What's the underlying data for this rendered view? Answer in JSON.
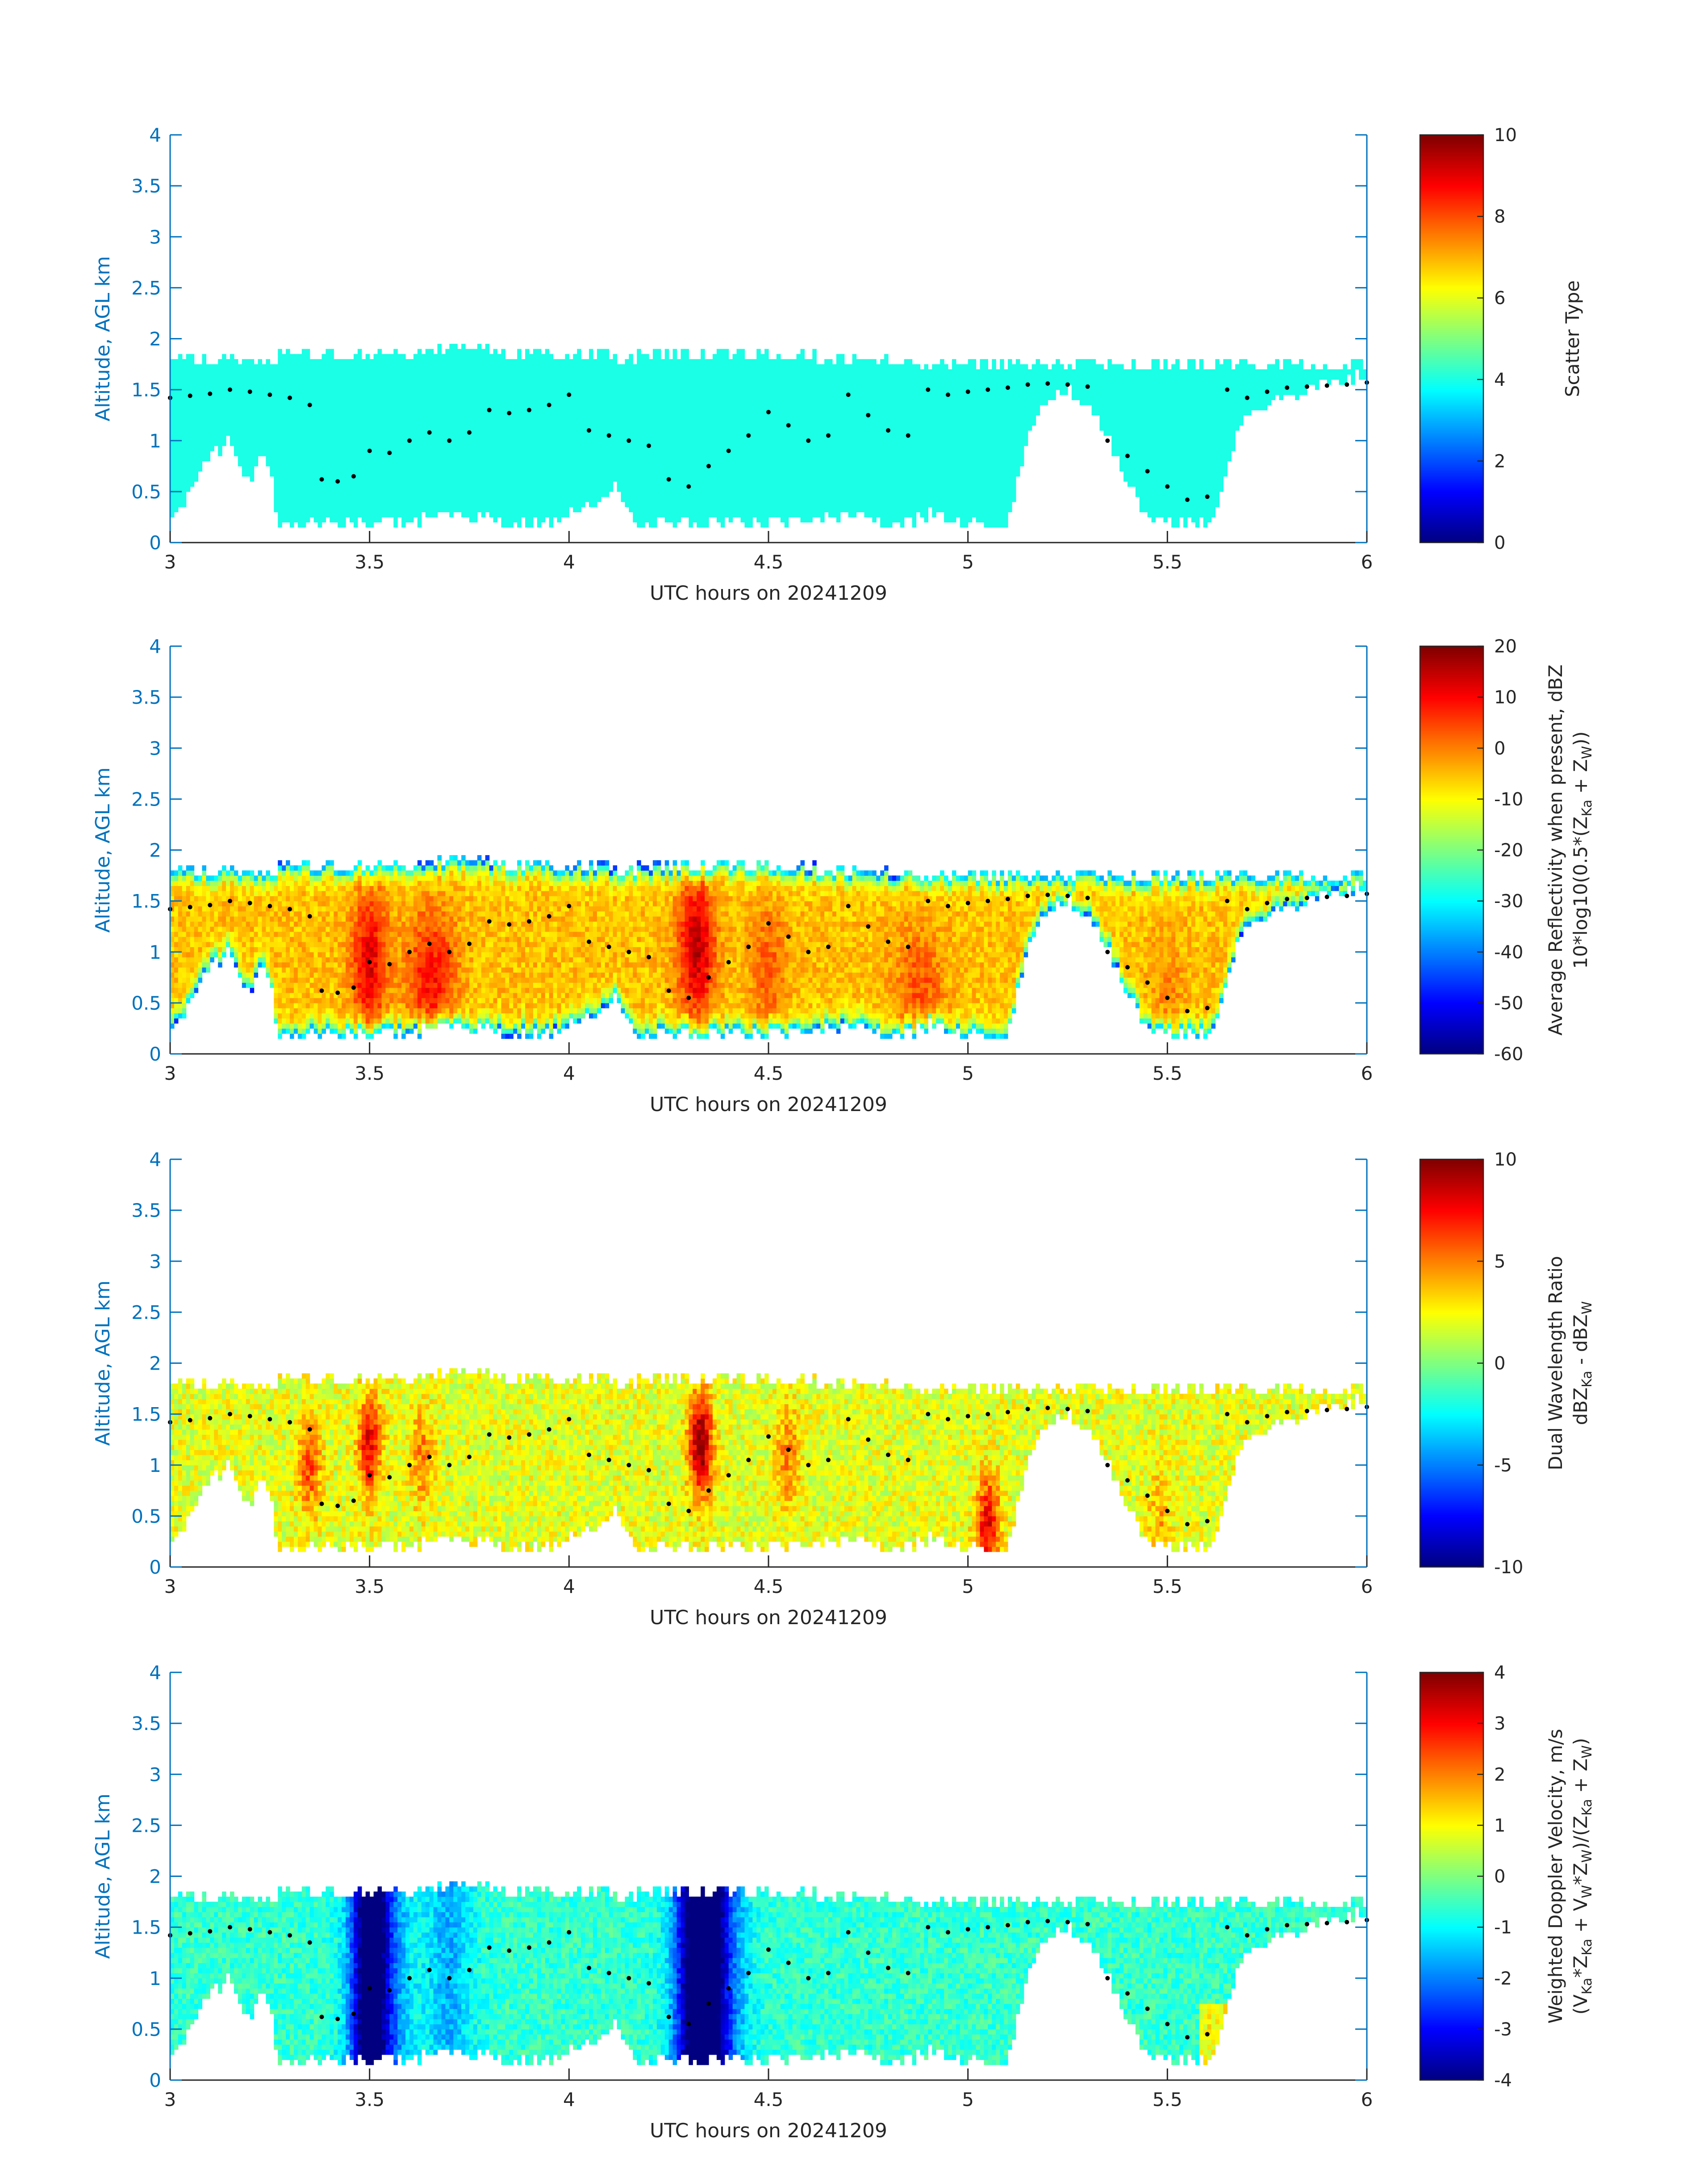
{
  "figure": {
    "background": "#ffffff",
    "axis_color": "#0072bd",
    "text_color": "#262626",
    "echo_top_marker_color": "#000000"
  },
  "chart_data": [
    {
      "type": "heatmap",
      "title": "",
      "xlabel": "UTC hours on 20241209",
      "ylabel": "Altitude, AGL km",
      "xlim": [
        3,
        6
      ],
      "ylim": [
        0,
        4
      ],
      "xticks": [
        "3",
        "3.5",
        "4",
        "4.5",
        "5",
        "5.5",
        "6"
      ],
      "yticks": [
        "0",
        "0.5",
        "1",
        "1.5",
        "2",
        "2.5",
        "3",
        "3.5",
        "4"
      ],
      "colorbar": {
        "label_lines": [
          "Scatter Type"
        ],
        "clim": [
          0,
          10
        ],
        "ticks": [
          "0",
          "2",
          "4",
          "6",
          "8",
          "10"
        ],
        "colormap": "jet"
      },
      "dominant_value": 4,
      "echo_top_markers": true,
      "grid": false,
      "legend": "none"
    },
    {
      "type": "heatmap",
      "title": "",
      "xlabel": "UTC hours on 20241209",
      "ylabel": "Altitude, AGL km",
      "xlim": [
        3,
        6
      ],
      "ylim": [
        0,
        4
      ],
      "xticks": [
        "3",
        "3.5",
        "4",
        "4.5",
        "5",
        "5.5",
        "6"
      ],
      "yticks": [
        "0",
        "0.5",
        "1",
        "1.5",
        "2",
        "2.5",
        "3",
        "3.5",
        "4"
      ],
      "colorbar": {
        "label_lines": [
          "Average Reflectivity when present, dBZ",
          "10*log10(0.5*(Z_Ka + Z_W))"
        ],
        "clim": [
          -60,
          20
        ],
        "ticks": [
          "-60",
          "-50",
          "-40",
          "-30",
          "-20",
          "-10",
          "0",
          "10",
          "20"
        ],
        "colormap": "jet"
      },
      "echo_top_markers": true,
      "grid": false,
      "legend": "none"
    },
    {
      "type": "heatmap",
      "title": "",
      "xlabel": "UTC hours on 20241209",
      "ylabel": "Altitude, AGL km",
      "xlim": [
        3,
        6
      ],
      "ylim": [
        0,
        4
      ],
      "xticks": [
        "3",
        "3.5",
        "4",
        "4.5",
        "5",
        "5.5",
        "6"
      ],
      "yticks": [
        "0",
        "0.5",
        "1",
        "1.5",
        "2",
        "2.5",
        "3",
        "3.5",
        "4"
      ],
      "colorbar": {
        "label_lines": [
          "Dual Wavelength Ratio",
          "dBZ_Ka - dBZ_W"
        ],
        "clim": [
          -10,
          10
        ],
        "ticks": [
          "-10",
          "-5",
          "0",
          "5",
          "10"
        ],
        "colormap": "jet"
      },
      "echo_top_markers": true,
      "grid": false,
      "legend": "none"
    },
    {
      "type": "heatmap",
      "title": "",
      "xlabel": "UTC hours on 20241209",
      "ylabel": "Altitude, AGL km",
      "xlim": [
        3,
        6
      ],
      "ylim": [
        0,
        4
      ],
      "xticks": [
        "3",
        "3.5",
        "4",
        "4.5",
        "5",
        "5.5",
        "6"
      ],
      "yticks": [
        "0",
        "0.5",
        "1",
        "1.5",
        "2",
        "2.5",
        "3",
        "3.5",
        "4"
      ],
      "colorbar": {
        "label_lines": [
          "Weighted Doppler Velocity, m/s",
          "(V_Ka*Z_Ka + V_W*Z_W)/(Z_Ka + Z_W)"
        ],
        "clim": [
          -4,
          4
        ],
        "ticks": [
          "-4",
          "-3",
          "-2",
          "-1",
          "0",
          "1",
          "2",
          "3",
          "4"
        ],
        "colormap": "jet"
      },
      "echo_top_markers": true,
      "grid": false,
      "legend": "none"
    }
  ],
  "cloud": {
    "top_km": [
      [
        3.0,
        1.8
      ],
      [
        3.25,
        1.8
      ],
      [
        3.3,
        1.85
      ],
      [
        3.55,
        1.85
      ],
      [
        3.7,
        1.9
      ],
      [
        3.88,
        1.86
      ],
      [
        4.15,
        1.82
      ],
      [
        4.3,
        1.85
      ],
      [
        4.5,
        1.86
      ],
      [
        4.7,
        1.8
      ],
      [
        4.9,
        1.76
      ],
      [
        5.2,
        1.75
      ],
      [
        6.0,
        1.75
      ]
    ],
    "base_km": [
      [
        3.0,
        0.3
      ],
      [
        3.03,
        0.35
      ],
      [
        3.05,
        0.55
      ],
      [
        3.08,
        0.8
      ],
      [
        3.12,
        0.9
      ],
      [
        3.15,
        1.0
      ],
      [
        3.18,
        0.75
      ],
      [
        3.2,
        0.6
      ],
      [
        3.22,
        0.9
      ],
      [
        3.25,
        0.7
      ],
      [
        3.27,
        0.2
      ],
      [
        3.55,
        0.2
      ],
      [
        3.7,
        0.25
      ],
      [
        3.95,
        0.2
      ],
      [
        4.05,
        0.35
      ],
      [
        4.12,
        0.6
      ],
      [
        4.16,
        0.2
      ],
      [
        4.6,
        0.2
      ],
      [
        4.65,
        0.25
      ],
      [
        4.72,
        0.3
      ],
      [
        4.75,
        0.2
      ],
      [
        4.85,
        0.2
      ],
      [
        4.92,
        0.3
      ],
      [
        4.98,
        0.2
      ],
      [
        5.1,
        0.2
      ],
      [
        5.15,
        1.0
      ],
      [
        5.18,
        1.3
      ],
      [
        5.25,
        1.5
      ],
      [
        5.3,
        1.35
      ],
      [
        5.35,
        1.05
      ],
      [
        5.4,
        0.6
      ],
      [
        5.44,
        0.3
      ],
      [
        5.46,
        0.2
      ],
      [
        5.6,
        0.2
      ],
      [
        5.64,
        0.5
      ],
      [
        5.67,
        1.0
      ],
      [
        5.7,
        1.25
      ],
      [
        5.78,
        1.4
      ],
      [
        5.9,
        1.55
      ],
      [
        6.0,
        1.65
      ]
    ],
    "echo_top_markers_km": [
      [
        3.0,
        1.42
      ],
      [
        3.05,
        1.44
      ],
      [
        3.1,
        1.46
      ],
      [
        3.15,
        1.5
      ],
      [
        3.2,
        1.48
      ],
      [
        3.25,
        1.45
      ],
      [
        3.3,
        1.42
      ],
      [
        3.35,
        1.35
      ],
      [
        3.38,
        0.62
      ],
      [
        3.42,
        0.6
      ],
      [
        3.46,
        0.65
      ],
      [
        3.5,
        0.9
      ],
      [
        3.55,
        0.88
      ],
      [
        3.6,
        1.0
      ],
      [
        3.65,
        1.08
      ],
      [
        3.7,
        1.0
      ],
      [
        3.75,
        1.08
      ],
      [
        3.8,
        1.3
      ],
      [
        3.85,
        1.27
      ],
      [
        3.9,
        1.3
      ],
      [
        3.95,
        1.35
      ],
      [
        4.0,
        1.45
      ],
      [
        4.05,
        1.1
      ],
      [
        4.1,
        1.05
      ],
      [
        4.15,
        1.0
      ],
      [
        4.2,
        0.95
      ],
      [
        4.25,
        0.62
      ],
      [
        4.3,
        0.55
      ],
      [
        4.35,
        0.75
      ],
      [
        4.4,
        0.9
      ],
      [
        4.45,
        1.05
      ],
      [
        4.5,
        1.28
      ],
      [
        4.55,
        1.15
      ],
      [
        4.6,
        1.0
      ],
      [
        4.65,
        1.05
      ],
      [
        4.7,
        1.45
      ],
      [
        4.75,
        1.25
      ],
      [
        4.8,
        1.1
      ],
      [
        4.85,
        1.05
      ],
      [
        4.9,
        1.5
      ],
      [
        4.95,
        1.45
      ],
      [
        5.0,
        1.48
      ],
      [
        5.05,
        1.5
      ],
      [
        5.1,
        1.52
      ],
      [
        5.15,
        1.55
      ],
      [
        5.2,
        1.56
      ],
      [
        5.25,
        1.55
      ],
      [
        5.3,
        1.53
      ],
      [
        5.35,
        1.0
      ],
      [
        5.4,
        0.85
      ],
      [
        5.45,
        0.7
      ],
      [
        5.5,
        0.55
      ],
      [
        5.55,
        0.42
      ],
      [
        5.6,
        0.45
      ],
      [
        5.65,
        1.5
      ],
      [
        5.7,
        1.42
      ],
      [
        5.75,
        1.48
      ],
      [
        5.8,
        1.52
      ],
      [
        5.85,
        1.53
      ],
      [
        5.9,
        1.54
      ],
      [
        5.95,
        1.55
      ],
      [
        6.0,
        1.57
      ]
    ],
    "reflectivity_features": [
      [
        3.5,
        0.9,
        12
      ],
      [
        3.63,
        0.75,
        4
      ],
      [
        3.68,
        0.7,
        5
      ],
      [
        4.32,
        1.05,
        15
      ],
      [
        4.5,
        0.8,
        3
      ],
      [
        4.85,
        0.6,
        0
      ],
      [
        4.9,
        0.5,
        2
      ],
      [
        5.5,
        0.4,
        0
      ]
    ],
    "dwr_features": [
      [
        3.35,
        1.0,
        6
      ],
      [
        3.5,
        1.2,
        8
      ],
      [
        3.63,
        1.1,
        5
      ],
      [
        4.33,
        1.2,
        10
      ],
      [
        4.55,
        1.1,
        5
      ],
      [
        5.05,
        0.4,
        8
      ],
      [
        5.48,
        0.5,
        4
      ]
    ],
    "velocity_features": [
      [
        3.5,
        -3.2,
        0.22
      ],
      [
        3.52,
        -2.6,
        0.35
      ],
      [
        3.7,
        -1.6,
        0.3
      ],
      [
        4.33,
        -3.6,
        0.28
      ],
      [
        4.35,
        -3.0,
        0.4
      ]
    ]
  }
}
